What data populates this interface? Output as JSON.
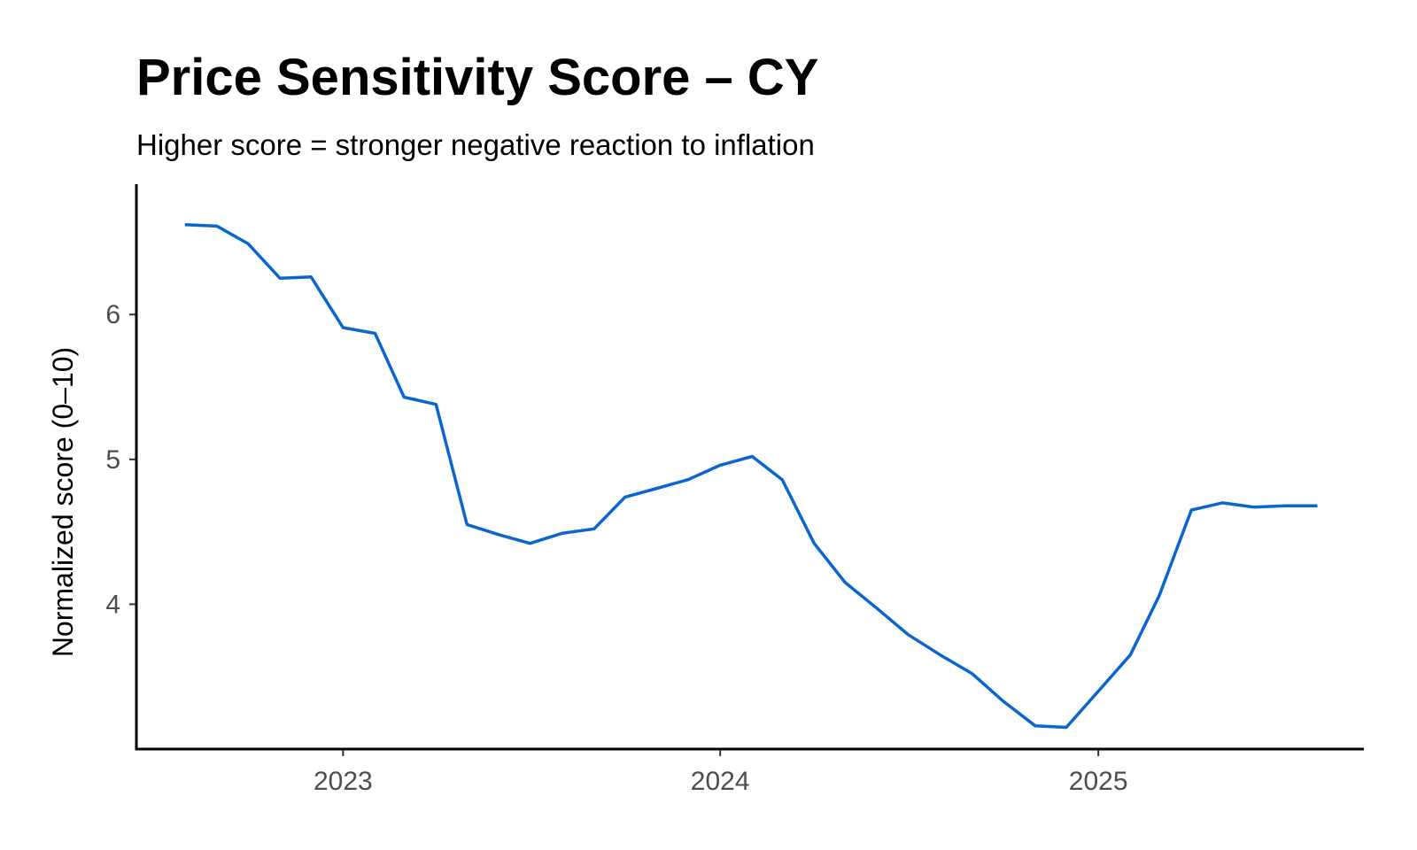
{
  "chart_data": {
    "type": "line",
    "title": "Price Sensitivity Score – CY",
    "subtitle": "Higher score = stronger negative reaction to inflation",
    "xlabel": "",
    "ylabel": "Normalized score (0–10)",
    "x_tick_labels": [
      "2023",
      "2024",
      "2025"
    ],
    "y_ticks": [
      4,
      5,
      6
    ],
    "xlim": [
      "2022-06-15",
      "2025-09-15"
    ],
    "ylim": [
      3.0,
      6.9
    ],
    "grid": false,
    "legend": "none",
    "color": "#0a66cc",
    "x": [
      "2022-08-01",
      "2022-09-01",
      "2022-10-01",
      "2022-11-01",
      "2022-12-01",
      "2023-01-01",
      "2023-02-01",
      "2023-03-01",
      "2023-04-01",
      "2023-05-01",
      "2023-06-01",
      "2023-07-01",
      "2023-08-01",
      "2023-09-01",
      "2023-10-01",
      "2023-11-01",
      "2023-12-01",
      "2024-01-01",
      "2024-02-01",
      "2024-03-01",
      "2024-04-01",
      "2024-05-01",
      "2024-06-01",
      "2024-07-01",
      "2024-08-01",
      "2024-09-01",
      "2024-10-01",
      "2024-11-01",
      "2024-12-01",
      "2025-01-01",
      "2025-02-01",
      "2025-03-01",
      "2025-04-01",
      "2025-05-01",
      "2025-06-01",
      "2025-07-01",
      "2025-08-01"
    ],
    "series": [
      {
        "values": [
          6.62,
          6.61,
          6.49,
          6.25,
          6.26,
          5.91,
          5.87,
          5.43,
          5.38,
          4.55,
          4.48,
          4.42,
          4.49,
          4.52,
          4.74,
          4.8,
          4.86,
          4.96,
          5.02,
          4.86,
          4.42,
          4.15,
          3.97,
          3.79,
          3.65,
          3.52,
          3.33,
          3.16,
          3.15,
          3.4,
          3.65,
          4.06,
          4.65,
          4.7,
          4.67,
          4.68,
          4.68
        ]
      }
    ]
  }
}
